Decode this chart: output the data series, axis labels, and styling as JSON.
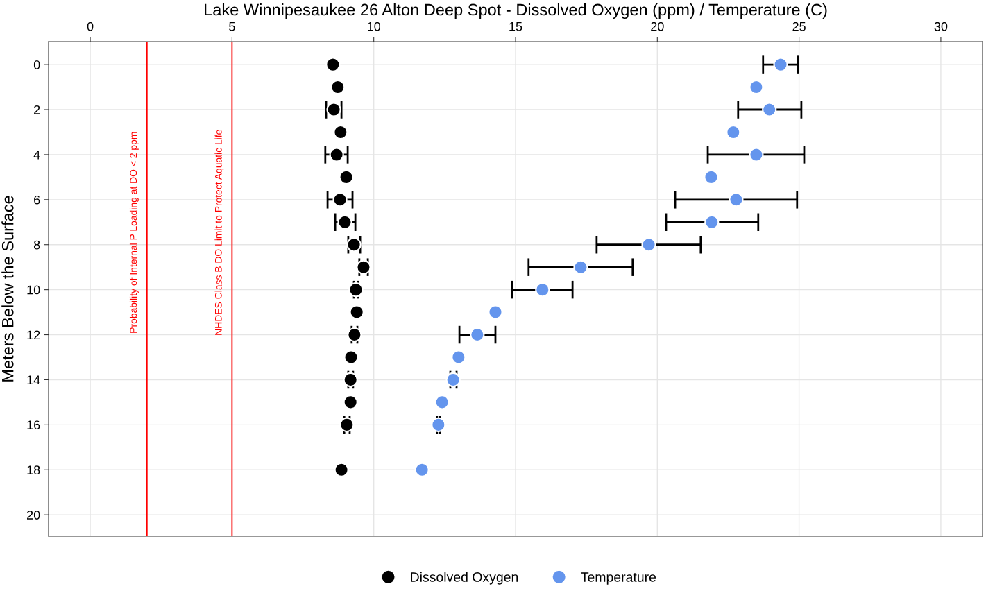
{
  "chart_data": {
    "type": "scatter",
    "title": "Lake Winnipesaukee 26 Alton Deep Spot - Dissolved Oxygen (ppm) / Temperature (C)",
    "ylabel": "Meters Below the Surface",
    "xlim": [
      -1.47,
      31.47
    ],
    "xticks": [
      0,
      5,
      10,
      15,
      20,
      25,
      30
    ],
    "ylim": [
      20.95,
      -1.02
    ],
    "yticks": [
      0,
      2,
      4,
      6,
      8,
      10,
      12,
      14,
      16,
      18,
      20
    ],
    "grid": true,
    "legend": "bottom",
    "marker": "circle",
    "series": [
      {
        "name": "Dissolved Oxygen",
        "color": "#000000",
        "x": [
          8.56,
          8.73,
          8.59,
          8.83,
          8.69,
          9.03,
          8.81,
          8.98,
          9.3,
          9.64,
          9.37,
          9.4,
          9.32,
          9.2,
          9.18,
          9.18,
          9.05,
          8.86
        ],
        "values": [
          0,
          1,
          2,
          3,
          4,
          5,
          6,
          7,
          8,
          9,
          10,
          11,
          12,
          13,
          14,
          15,
          16,
          18
        ],
        "xerrors": [
          null,
          null,
          [
            8.32,
            8.86
          ],
          null,
          [
            8.29,
            9.08
          ],
          null,
          [
            8.37,
            9.25
          ],
          [
            8.64,
            9.35
          ],
          [
            9.1,
            9.52
          ],
          [
            9.49,
            9.79
          ],
          [
            9.3,
            9.44
          ],
          null,
          [
            9.22,
            9.42
          ],
          null,
          [
            9.1,
            9.27
          ],
          null,
          [
            8.96,
            9.15
          ],
          null
        ]
      },
      {
        "name": "Temperature",
        "color": "#6495ed",
        "x": [
          24.35,
          23.49,
          23.95,
          22.68,
          23.49,
          21.9,
          22.78,
          21.92,
          19.7,
          17.3,
          15.95,
          14.29,
          13.65,
          12.99,
          12.8,
          12.41,
          12.28,
          11.7
        ],
        "values": [
          0,
          1,
          2,
          3,
          4,
          5,
          6,
          7,
          8,
          9,
          10,
          11,
          12,
          13,
          14,
          15,
          16,
          18
        ],
        "xerrors": [
          [
            23.73,
            24.96
          ],
          null,
          [
            22.85,
            25.08
          ],
          null,
          [
            21.78,
            25.18
          ],
          null,
          [
            20.63,
            24.93
          ],
          [
            20.31,
            23.56
          ],
          [
            17.86,
            21.53
          ],
          [
            15.46,
            19.13
          ],
          [
            14.88,
            17.01
          ],
          null,
          [
            13.02,
            14.29
          ],
          null,
          [
            12.7,
            12.92
          ],
          null,
          [
            12.23,
            12.33
          ],
          null
        ]
      }
    ],
    "ref_lines": [
      {
        "axis": "x",
        "value": 2,
        "label": "Probability of Internal P Loading at DO < 2 ppm",
        "color": "#ff0000"
      },
      {
        "axis": "x",
        "value": 5,
        "label": "NHDES Class B DO Limit to Protect Aquatic Life",
        "color": "#ff0000"
      }
    ]
  }
}
